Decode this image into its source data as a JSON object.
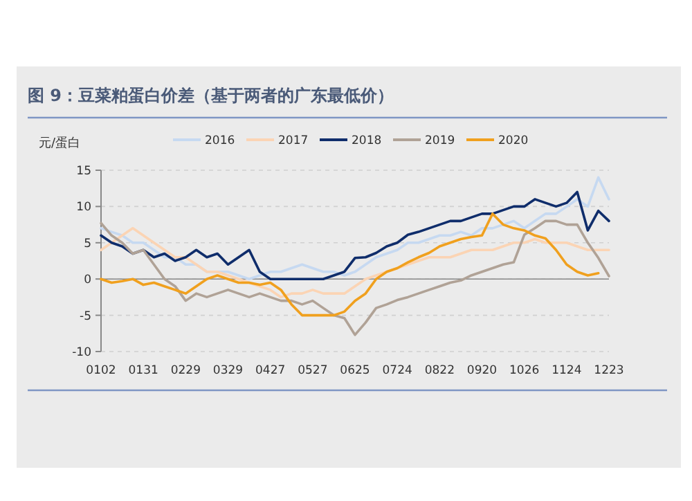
{
  "chart_data": {
    "type": "line",
    "title": "图 9：豆菜粕蛋白价差（基于两者的广东最低价）",
    "ylabel": "元/蛋白",
    "categories": [
      "0102",
      null,
      null,
      null,
      "0131",
      null,
      null,
      null,
      "0229",
      null,
      null,
      null,
      "0329",
      null,
      null,
      null,
      "0427",
      null,
      null,
      null,
      "0527",
      null,
      null,
      null,
      "0625",
      null,
      null,
      null,
      "0724",
      null,
      null,
      null,
      "0822",
      null,
      null,
      null,
      "0920",
      null,
      null,
      null,
      "1026",
      null,
      null,
      null,
      "1124",
      null,
      null,
      null,
      "1223"
    ],
    "series": [
      {
        "name": "2016",
        "color": "#c6d9f1",
        "values": [
          7,
          6.5,
          6,
          5,
          5,
          4,
          3,
          3,
          2,
          2,
          1,
          1,
          1,
          0.5,
          0,
          0.5,
          1,
          1,
          1.5,
          2,
          1.5,
          1,
          1,
          0.5,
          1,
          2,
          3,
          3.5,
          4,
          5,
          5,
          5.5,
          6,
          6,
          6.5,
          6,
          7,
          7,
          7.5,
          8,
          7,
          8,
          9,
          9,
          10,
          11,
          10,
          14,
          11
        ]
      },
      {
        "name": "2017",
        "color": "#fbd4b4",
        "values": [
          4,
          5,
          6,
          7,
          6,
          5,
          4,
          3,
          3,
          2,
          1,
          1,
          0.5,
          0,
          -0.5,
          -1,
          -1.5,
          -2.5,
          -2,
          -2,
          -1.5,
          -2,
          -2,
          -2,
          -1,
          0,
          0.5,
          1,
          1.5,
          2,
          2.5,
          3,
          3,
          3,
          3.5,
          4,
          4,
          4,
          4.5,
          5,
          5,
          5.5,
          5,
          5,
          5,
          4.5,
          4,
          4,
          4
        ]
      },
      {
        "name": "2018",
        "color": "#0f2d6b",
        "values": [
          6,
          5,
          4.5,
          3.5,
          4,
          3,
          3.5,
          2.5,
          3,
          4,
          3,
          3.5,
          2,
          3,
          4,
          1,
          0,
          0,
          0,
          0,
          0,
          0,
          0.5,
          1,
          2.9,
          3,
          3.6,
          4.5,
          5,
          6.1,
          6.5,
          7,
          7.5,
          8,
          8,
          8.5,
          9,
          9,
          9.5,
          10,
          10,
          11,
          10.5,
          10,
          10.5,
          12,
          6.7,
          9.4,
          8
        ]
      },
      {
        "name": "2019",
        "color": "#b0a296",
        "values": [
          7.7,
          6,
          5,
          3.5,
          4,
          2,
          0,
          -1,
          -3,
          -2,
          -2.5,
          -2,
          -1.5,
          -2,
          -2.5,
          -2,
          -2.5,
          -3,
          -3,
          -3.5,
          -3,
          -4,
          -5,
          -5.4,
          -7.7,
          -6,
          -4,
          -3.5,
          -2.9,
          -2.5,
          -2,
          -1.5,
          -1,
          -0.5,
          -0.2,
          0.5,
          1,
          1.5,
          2,
          2.3,
          6.1,
          7,
          8,
          8,
          7.5,
          7.5,
          5,
          2.9,
          0.4
        ]
      },
      {
        "name": "2020",
        "color": "#f0a01e",
        "values": [
          0,
          -0.5,
          -0.3,
          0,
          -0.8,
          -0.5,
          -1,
          -1.5,
          -2,
          -1,
          0,
          0.5,
          0,
          -0.5,
          -0.5,
          -0.8,
          -0.5,
          -1.5,
          -3.5,
          -5,
          -5,
          -5,
          -5,
          -4.5,
          -3,
          -2,
          0,
          1,
          1.5,
          2.3,
          3,
          3.6,
          4.5,
          5,
          5.5,
          5.8,
          6,
          9,
          7.5,
          7,
          6.7,
          6,
          5.6,
          4,
          2,
          1,
          0.5,
          0.8,
          null
        ]
      }
    ],
    "ylim": [
      -10,
      15
    ],
    "yticks": [
      -10,
      -5,
      0,
      5,
      10,
      15
    ],
    "grid": "y",
    "legend": "top"
  }
}
